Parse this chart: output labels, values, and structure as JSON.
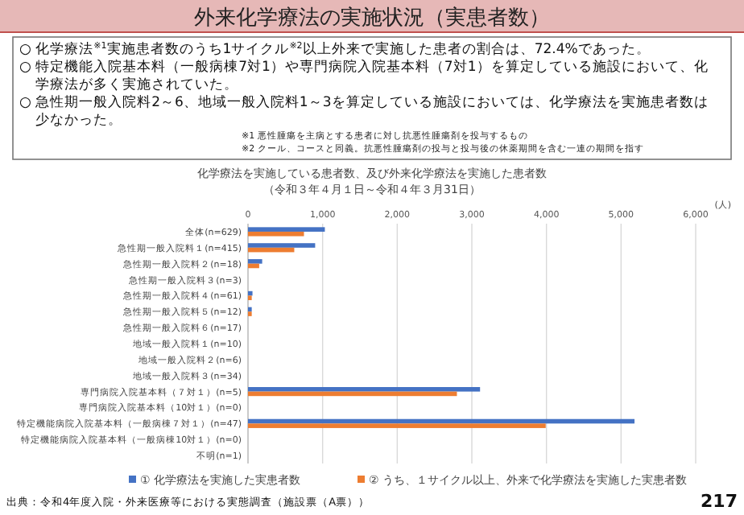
{
  "chart_data": {
    "type": "bar",
    "orientation": "horizontal",
    "title": "外来化学療法の実施状況（実患者数）",
    "subtitle": "化学療法を実施している患者数、及び外来化学療法を実施した患者数",
    "xlabel": "(人)",
    "categories": [
      "全体(n=629)",
      "急性期一般入院料１(n=415)",
      "急性期一般入院料２(n=18)",
      "急性期一般入院料３(n=3)",
      "急性期一般入院料４(n=61)",
      "急性期一般入院料５(n=12)",
      "急性期一般入院料６(n=17)",
      "地域一般入院料１(n=10)",
      "地域一般入院料２(n=6)",
      "地域一般入院料３(n=34)",
      "専門病院入院基本料（７対１）(n=5)",
      "専門病院入院基本料（10対１）(n=0)",
      "特定機能病院入院基本料（一般病棟７対１）(n=47)",
      "特定機能病院入院基本料（一般病棟10対１）(n=0)",
      "不明(n=1)"
    ],
    "series": [
      {
        "name": "① 化学療法を実施した実患者数",
        "color": "#4472c4",
        "values": [
          1030,
          900,
          190,
          0,
          60,
          50,
          0,
          0,
          0,
          0,
          3110,
          0,
          5180,
          0,
          0
        ]
      },
      {
        "name": "② うち、１サイクル以上、外来で化学療法を実施した実患者数",
        "color": "#ed7d31",
        "values": [
          750,
          620,
          150,
          0,
          50,
          50,
          0,
          0,
          0,
          0,
          2800,
          0,
          3990,
          0,
          0
        ]
      }
    ],
    "xlim": [
      0,
      6000
    ],
    "xticks": [
      0,
      {
        "value": 1000,
        "label": "1,000"
      },
      {
        "value": 2000,
        "label": "2,000"
      },
      {
        "value": 3000,
        "label": "3,000"
      },
      {
        "value": 4000,
        "label": "4,000"
      },
      {
        "value": 5000,
        "label": "5,000"
      },
      {
        "value": 6000,
        "label": "6,000"
      }
    ],
    "grid": "x",
    "legend": "bottom",
    "annotations": [
      "○ 化学療法$^{※1}$実施患者数のうち1サイクル$^{※2}$以上外来で実施した患者の割合は、72.4%であった。",
      "○ 特定機能入院基本料（一般病棟7対1）や専門病院入院基本料（7対1）を算定している施設において、化学療法が多く実施されていた。",
      "○ 急性期一般入院料2～6、地域一般入院料1～3を算定している施設においては、化学療法を実施患者数は少なかった。",
      "※1 悪性腫瘍を主病とする患者に対し抗悪性腫瘍剤を投与するもの",
      "※2 クール、コースと同義。抗悪性腫瘍剤の投与と投与後の休薬期間を含む一連の期間を指す",
      "（令和３年４月１日～令和４年３月31日）",
      "出典：令和4年度入院・外来医療等における実態調査（施設票（A票））",
      "217"
    ]
  }
}
